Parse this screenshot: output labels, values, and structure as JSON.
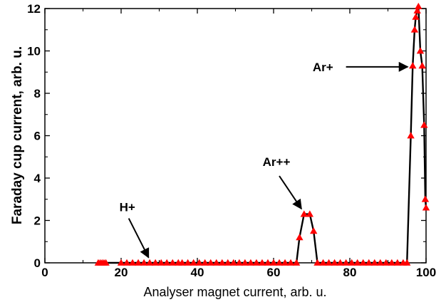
{
  "chart_data": {
    "type": "line",
    "title": "",
    "xlabel": "Analyser magnet current, arb. u.",
    "ylabel": "Faraday cup current, arb. u.",
    "xlim": [
      0,
      100
    ],
    "ylim": [
      0,
      12
    ],
    "x_ticks": [
      "0",
      "20",
      "40",
      "60",
      "80",
      "100"
    ],
    "y_ticks": [
      "0",
      "2",
      "4",
      "6",
      "8",
      "10",
      "12"
    ],
    "grid": false,
    "legend": "none",
    "line_color": "#000000",
    "marker_color": "#ff0000",
    "marker": "triangle",
    "series": [
      {
        "values": [
          [
            14,
            0
          ],
          [
            14.5,
            0
          ],
          [
            15,
            0
          ],
          [
            15.5,
            0
          ],
          [
            16,
            0
          ],
          [
            20,
            0
          ],
          [
            21.5,
            0
          ],
          [
            23,
            0
          ],
          [
            24.5,
            0
          ],
          [
            26,
            0
          ],
          [
            27.5,
            0
          ],
          [
            29,
            0
          ],
          [
            30.5,
            0
          ],
          [
            32,
            0
          ],
          [
            33.5,
            0
          ],
          [
            35,
            0
          ],
          [
            36,
            0
          ],
          [
            37.5,
            0
          ],
          [
            39,
            0
          ],
          [
            40.5,
            0
          ],
          [
            42,
            0
          ],
          [
            43.5,
            0
          ],
          [
            45,
            0
          ],
          [
            46.5,
            0
          ],
          [
            48,
            0
          ],
          [
            49.5,
            0
          ],
          [
            51,
            0
          ],
          [
            52.5,
            0
          ],
          [
            54,
            0
          ],
          [
            55.5,
            0
          ],
          [
            57,
            0
          ],
          [
            58.5,
            0
          ],
          [
            60,
            0
          ],
          [
            61.5,
            0
          ],
          [
            63,
            0
          ],
          [
            64.5,
            0
          ],
          [
            66,
            0
          ],
          [
            66.8,
            1.2
          ],
          [
            68,
            2.3
          ],
          [
            69.5,
            2.3
          ],
          [
            70.5,
            1.5
          ],
          [
            71.5,
            0
          ],
          [
            73,
            0
          ],
          [
            74.5,
            0
          ],
          [
            76,
            0
          ],
          [
            77.5,
            0
          ],
          [
            79,
            0
          ],
          [
            80.5,
            0
          ],
          [
            82,
            0
          ],
          [
            83.5,
            0
          ],
          [
            85,
            0
          ],
          [
            86.5,
            0
          ],
          [
            88,
            0
          ],
          [
            89.5,
            0
          ],
          [
            91,
            0
          ],
          [
            92.5,
            0
          ],
          [
            94,
            0
          ],
          [
            95,
            0
          ],
          [
            96,
            6.0
          ],
          [
            96.5,
            9.3
          ],
          [
            97,
            11.0
          ],
          [
            97.3,
            11.6
          ],
          [
            97.7,
            11.9
          ],
          [
            98,
            12.1
          ],
          [
            98.5,
            10.0
          ],
          [
            99,
            9.3
          ],
          [
            99.5,
            6.5
          ],
          [
            99.8,
            3.0
          ],
          [
            100,
            2.6
          ]
        ]
      }
    ],
    "annotations": [
      {
        "text": "H+",
        "arrow_from": [
          22,
          2.1
        ],
        "arrow_to": [
          27.2,
          0.25
        ]
      },
      {
        "text": "Ar++",
        "arrow_from": [
          61.5,
          4.1
        ],
        "arrow_to": [
          67.3,
          2.55
        ]
      },
      {
        "text": "Ar+",
        "arrow_from": [
          79,
          9.25
        ],
        "arrow_to": [
          95.2,
          9.25
        ]
      }
    ]
  }
}
